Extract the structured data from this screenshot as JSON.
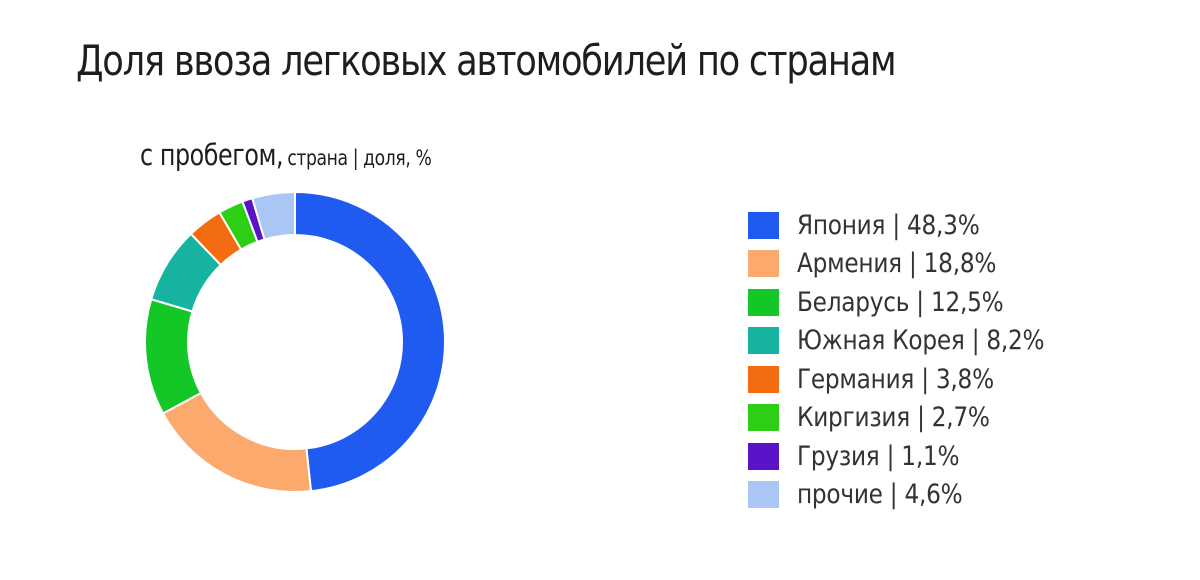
{
  "chart_data": {
    "type": "pie",
    "variant": "donut",
    "title": "Доля ввоза легковых автомобилей по странам",
    "subtitle_main": "с пробегом,",
    "subtitle_detail": "страна | доля, %",
    "legend_position": "right",
    "categories": [
      "Япония",
      "Армения",
      "Беларусь",
      "Южная Корея",
      "Германия",
      "Киргизия",
      "Грузия",
      "прочие"
    ],
    "values": [
      48.3,
      18.8,
      12.5,
      8.2,
      3.8,
      2.7,
      1.1,
      4.6
    ],
    "value_labels": [
      "48,3%",
      "18,8%",
      "12,5%",
      "8,2%",
      "3,8%",
      "2,7%",
      "1,1%",
      "4,6%"
    ],
    "legend_labels": [
      "Япония | 48,3%",
      "Армения | 18,8%",
      "Беларусь | 12,5%",
      "Южная Корея | 8,2%",
      "Германия | 3,8%",
      "Киргизия | 2,7%",
      "Грузия | 1,1%",
      "прочие | 4,6%"
    ],
    "colors": [
      "#1f5bf0",
      "#fca96e",
      "#13c726",
      "#16b4a0",
      "#f46c10",
      "#2ccf14",
      "#5b13c8",
      "#a9c6f5"
    ]
  }
}
